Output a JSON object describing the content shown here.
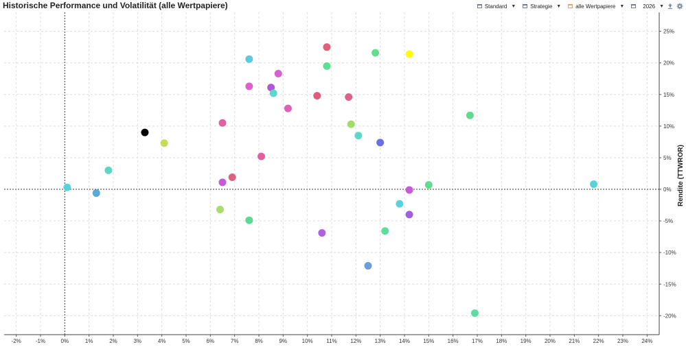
{
  "header": {
    "title": "Historische Performance und Volatilität (alle Wertpapiere)",
    "view_label": "Standard",
    "strategy_label": "Strategie",
    "filter_label": "alle Wertpapiere",
    "year_label": "2026",
    "icons": [
      "calendar-icon",
      "calendar-icon",
      "calendar-icon",
      "calendar-icon",
      "export-icon",
      "settings-icon"
    ],
    "filter_color": "#f5a623"
  },
  "chart_data": {
    "type": "scatter",
    "title": "Historische Performance und Volatilität (alle Wertpapiere)",
    "xlabel": "",
    "ylabel": "Rendite (TTWROR)",
    "xlim": [
      -2.5,
      24.5
    ],
    "ylim": [
      -23,
      28
    ],
    "x_ticks": [
      "-2%",
      "-1%",
      "0%",
      "1%",
      "2%",
      "3%",
      "4%",
      "5%",
      "6%",
      "7%",
      "8%",
      "9%",
      "10%",
      "11%",
      "12%",
      "13%",
      "14%",
      "15%",
      "16%",
      "17%",
      "18%",
      "19%",
      "20%",
      "21%",
      "22%",
      "23%",
      "24%"
    ],
    "y_ticks": [
      "25%",
      "20%",
      "15%",
      "10%",
      "5%",
      "0%",
      "-5%",
      "-10%",
      "-15%",
      "-20%"
    ],
    "grid": true,
    "y_axis_position": "right",
    "points": [
      {
        "x": 0.1,
        "y": 0.3,
        "color": "#5ccfd8"
      },
      {
        "x": 1.3,
        "y": -0.6,
        "color": "#5aa8d8"
      },
      {
        "x": 1.8,
        "y": 3.0,
        "color": "#5ed6c4"
      },
      {
        "x": 3.3,
        "y": 9.0,
        "color": "#000000"
      },
      {
        "x": 4.1,
        "y": 7.3,
        "color": "#c4dc5a"
      },
      {
        "x": 6.4,
        "y": -3.2,
        "color": "#a8de6a"
      },
      {
        "x": 6.5,
        "y": 10.5,
        "color": "#e060a8"
      },
      {
        "x": 6.5,
        "y": 1.1,
        "color": "#c85ad8"
      },
      {
        "x": 6.9,
        "y": 1.9,
        "color": "#e06080"
      },
      {
        "x": 7.6,
        "y": 20.6,
        "color": "#5ec8de"
      },
      {
        "x": 7.6,
        "y": 16.3,
        "color": "#de60c8"
      },
      {
        "x": 7.6,
        "y": -4.9,
        "color": "#5ed890"
      },
      {
        "x": 8.1,
        "y": 5.2,
        "color": "#e060a0"
      },
      {
        "x": 8.5,
        "y": 16.1,
        "color": "#b058d8"
      },
      {
        "x": 8.6,
        "y": 15.2,
        "color": "#5ed6c8"
      },
      {
        "x": 8.8,
        "y": 18.3,
        "color": "#d860d0"
      },
      {
        "x": 9.2,
        "y": 12.8,
        "color": "#e060b8"
      },
      {
        "x": 10.4,
        "y": 14.8,
        "color": "#e05a80"
      },
      {
        "x": 10.6,
        "y": -6.9,
        "color": "#b060e0"
      },
      {
        "x": 10.8,
        "y": 22.5,
        "color": "#e0607a"
      },
      {
        "x": 10.8,
        "y": 19.5,
        "color": "#5ede90"
      },
      {
        "x": 11.7,
        "y": 14.6,
        "color": "#e0608c"
      },
      {
        "x": 11.8,
        "y": 10.3,
        "color": "#a0dc6a"
      },
      {
        "x": 12.1,
        "y": 8.5,
        "color": "#5ed6c8"
      },
      {
        "x": 12.5,
        "y": -12.1,
        "color": "#6a9ee0"
      },
      {
        "x": 12.8,
        "y": 21.6,
        "color": "#60de8c"
      },
      {
        "x": 13.0,
        "y": 7.4,
        "color": "#6a70dc"
      },
      {
        "x": 13.2,
        "y": -6.6,
        "color": "#60dca0"
      },
      {
        "x": 13.8,
        "y": -2.3,
        "color": "#5ed0da"
      },
      {
        "x": 14.2,
        "y": 21.4,
        "color": "#ffff00"
      },
      {
        "x": 14.2,
        "y": -4.0,
        "color": "#a060e0"
      },
      {
        "x": 14.2,
        "y": -0.1,
        "color": "#c85ad8"
      },
      {
        "x": 15.0,
        "y": 0.7,
        "color": "#60dc90"
      },
      {
        "x": 16.7,
        "y": 11.7,
        "color": "#60dc90"
      },
      {
        "x": 16.9,
        "y": -19.6,
        "color": "#60dca0"
      },
      {
        "x": 21.8,
        "y": 0.8,
        "color": "#5ed0da"
      }
    ]
  }
}
